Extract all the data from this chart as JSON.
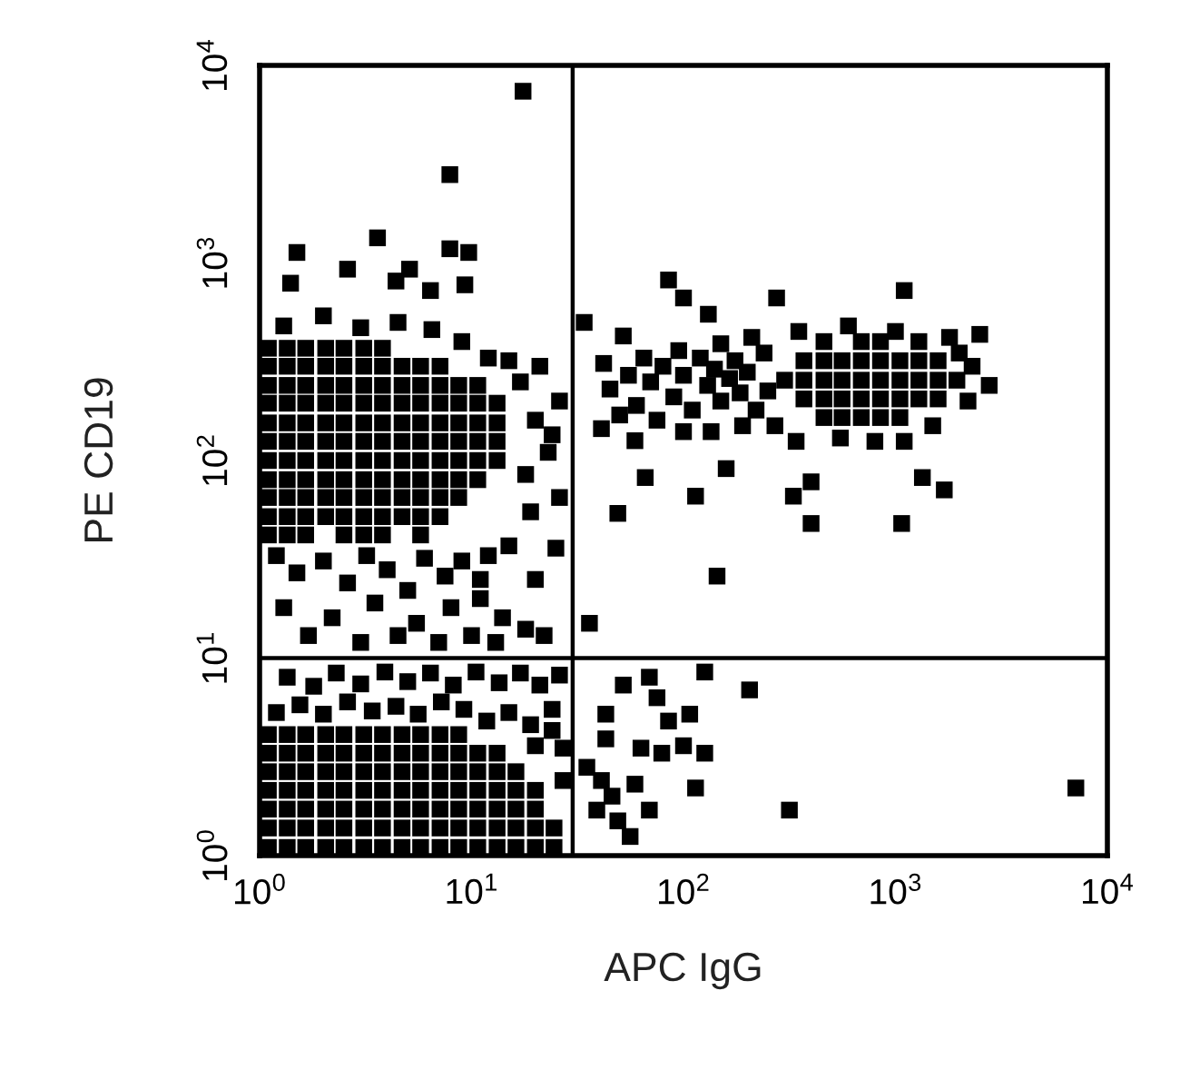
{
  "chart_data": {
    "type": "scatter",
    "xlabel": "APC IgG",
    "ylabel": "PE CD19",
    "log": "xy",
    "marker": "square",
    "grid": false,
    "xlim": [
      1,
      10000
    ],
    "ylim": [
      1,
      10000
    ],
    "xticks": [
      {
        "value": 1,
        "label": "10$^{0}$"
      },
      {
        "value": 10,
        "label": "10$^{1}$"
      },
      {
        "value": 100,
        "label": "10$^{2}$"
      },
      {
        "value": 1000,
        "label": "10$^{3}$"
      },
      {
        "value": 10000,
        "label": "10$^{4}$"
      }
    ],
    "yticks": [
      {
        "value": 1,
        "label": "10$^{0}$"
      },
      {
        "value": 10,
        "label": "10$^{1}$"
      },
      {
        "value": 100,
        "label": "10$^{2}$"
      },
      {
        "value": 1000,
        "label": "10$^{3}$"
      },
      {
        "value": 10000,
        "label": "10$^{4}$"
      }
    ],
    "ref_lines": [
      {
        "axis": "x",
        "value": 30,
        "color": "#000000"
      },
      {
        "axis": "y",
        "value": 10,
        "color": "#000000"
      }
    ],
    "series": [
      {
        "color": "#000000",
        "x": [
          1.1,
          1.35,
          1.65,
          2.05,
          2.5,
          3.1,
          3.8,
          1.1,
          1.35,
          1.65,
          2.05,
          2.5,
          3.1,
          3.8,
          4.7,
          5.75,
          7.1,
          1.1,
          1.35,
          1.65,
          2.05,
          2.5,
          3.1,
          3.8,
          4.7,
          5.75,
          7.1,
          8.7,
          10.7,
          1.1,
          1.35,
          1.65,
          2.05,
          2.5,
          3.1,
          3.8,
          4.7,
          5.75,
          7.1,
          8.7,
          10.7,
          13.2,
          1.1,
          1.35,
          1.65,
          2.05,
          2.5,
          3.1,
          3.8,
          4.7,
          5.75,
          7.1,
          8.7,
          10.7,
          13.2,
          1.1,
          1.35,
          1.65,
          2.05,
          2.5,
          3.1,
          3.8,
          4.7,
          5.75,
          7.1,
          8.7,
          10.7,
          13.2,
          1.1,
          1.35,
          1.65,
          2.05,
          2.5,
          3.1,
          3.8,
          4.7,
          5.75,
          7.1,
          8.7,
          10.7,
          13.2,
          1.1,
          1.35,
          1.65,
          2.05,
          2.5,
          3.1,
          3.8,
          4.7,
          5.75,
          7.1,
          8.7,
          10.7,
          1.1,
          1.35,
          1.65,
          2.05,
          2.5,
          3.1,
          3.8,
          4.7,
          5.75,
          7.1,
          8.7,
          1.1,
          1.35,
          1.65,
          2.05,
          2.5,
          3.1,
          3.8,
          4.7,
          5.75,
          7.1,
          1.1,
          1.35,
          1.65,
          2.5,
          3.1,
          3.8,
          5.75
        ],
        "values": [
          370,
          370,
          370,
          370,
          370,
          370,
          370,
          300,
          300,
          300,
          300,
          300,
          300,
          300,
          300,
          300,
          300,
          240,
          240,
          240,
          240,
          240,
          240,
          240,
          240,
          240,
          240,
          240,
          240,
          195,
          195,
          195,
          195,
          195,
          195,
          195,
          195,
          195,
          195,
          195,
          195,
          195,
          155,
          155,
          155,
          155,
          155,
          155,
          155,
          155,
          155,
          155,
          155,
          155,
          155,
          125,
          125,
          125,
          125,
          125,
          125,
          125,
          125,
          125,
          125,
          125,
          125,
          125,
          100,
          100,
          100,
          100,
          100,
          100,
          100,
          100,
          100,
          100,
          100,
          100,
          100,
          80,
          80,
          80,
          80,
          80,
          80,
          80,
          80,
          80,
          80,
          80,
          80,
          65,
          65,
          65,
          65,
          65,
          65,
          65,
          65,
          65,
          65,
          65,
          52,
          52,
          52,
          52,
          52,
          52,
          52,
          52,
          52,
          52,
          42,
          42,
          42,
          42,
          42,
          42,
          42
        ]
      },
      {
        "color": "#000000",
        "x": [
          17.5,
          7.9,
          3.6,
          1.5,
          2.6,
          1.4,
          5.1,
          4.4,
          7.9,
          9.7,
          9.3,
          6.4,
          1.3,
          2.0,
          3.0,
          4.5,
          6.5,
          9,
          12,
          15,
          17,
          20,
          23,
          18,
          26,
          26,
          19,
          24,
          21,
          25,
          1.2,
          1.5,
          2.0,
          2.6,
          3.2,
          4,
          5,
          6,
          7.5,
          9,
          11,
          12,
          15,
          1.3,
          2.2,
          3.5,
          5.5,
          8,
          11,
          14,
          1.7,
          3,
          4.5,
          7,
          10,
          13,
          18,
          20,
          22
        ],
        "values": [
          7400,
          2800,
          1340,
          1130,
          930,
          790,
          930,
          810,
          1180,
          1130,
          775,
          725,
          480,
          540,
          470,
          500,
          460,
          400,
          330,
          320,
          250,
          160,
          110,
          85,
          200,
          65,
          55,
          135,
          300,
          36,
          33,
          27,
          31,
          24,
          33,
          28,
          22,
          32,
          26,
          31,
          25,
          33,
          37,
          18,
          16,
          19,
          15,
          18,
          20,
          16,
          13,
          12,
          13,
          12,
          13,
          12,
          14,
          25,
          13
        ]
      },
      {
        "color": "#000000",
        "x": [
          1.1,
          1.35,
          1.65,
          2.05,
          2.5,
          3.1,
          3.8,
          4.7,
          5.75,
          7.1,
          8.7,
          10.7,
          13.2,
          16.2,
          20,
          24.5,
          1.1,
          1.35,
          1.65,
          2.05,
          2.5,
          3.1,
          3.8,
          4.7,
          5.75,
          7.1,
          8.7,
          10.7,
          13.2,
          16.2,
          20,
          24.5,
          1.1,
          1.35,
          1.65,
          2.05,
          2.5,
          3.1,
          3.8,
          4.7,
          5.75,
          7.1,
          8.7,
          10.7,
          13.2,
          16.2,
          20,
          1.1,
          1.35,
          1.65,
          2.05,
          2.5,
          3.1,
          3.8,
          4.7,
          5.75,
          7.1,
          8.7,
          10.7,
          13.2,
          16.2,
          20,
          1.1,
          1.35,
          1.65,
          2.05,
          2.5,
          3.1,
          3.8,
          4.7,
          5.75,
          7.1,
          8.7,
          10.7,
          13.2,
          16.2,
          1.1,
          1.35,
          1.65,
          2.05,
          2.5,
          3.1,
          3.8,
          4.7,
          5.75,
          7.1,
          8.7,
          10.7,
          13.2,
          1.1,
          1.35,
          1.65,
          2.05,
          2.5,
          3.1,
          3.8,
          4.7,
          5.75,
          7.1,
          8.7
        ],
        "values": [
          1.1,
          1.1,
          1.1,
          1.1,
          1.1,
          1.1,
          1.1,
          1.1,
          1.1,
          1.1,
          1.1,
          1.1,
          1.1,
          1.1,
          1.1,
          1.1,
          1.38,
          1.38,
          1.38,
          1.38,
          1.38,
          1.38,
          1.38,
          1.38,
          1.38,
          1.38,
          1.38,
          1.38,
          1.38,
          1.38,
          1.38,
          1.38,
          1.72,
          1.72,
          1.72,
          1.72,
          1.72,
          1.72,
          1.72,
          1.72,
          1.72,
          1.72,
          1.72,
          1.72,
          1.72,
          1.72,
          1.72,
          2.14,
          2.14,
          2.14,
          2.14,
          2.14,
          2.14,
          2.14,
          2.14,
          2.14,
          2.14,
          2.14,
          2.14,
          2.14,
          2.14,
          2.14,
          2.66,
          2.66,
          2.66,
          2.66,
          2.66,
          2.66,
          2.66,
          2.66,
          2.66,
          2.66,
          2.66,
          2.66,
          2.66,
          2.66,
          3.3,
          3.3,
          3.3,
          3.3,
          3.3,
          3.3,
          3.3,
          3.3,
          3.3,
          3.3,
          3.3,
          3.3,
          3.3,
          4.1,
          4.1,
          4.1,
          4.1,
          4.1,
          4.1,
          4.1,
          4.1,
          4.1,
          4.1,
          4.1
        ]
      },
      {
        "color": "#000000",
        "x": [
          1.2,
          1.55,
          2.0,
          2.6,
          3.4,
          4.4,
          5.6,
          7.2,
          9.2,
          11.8,
          15,
          19,
          24,
          1.35,
          1.8,
          2.3,
          3.0,
          3.9,
          5.0,
          6.4,
          8.2,
          10.5,
          13.5,
          17,
          21,
          26,
          24,
          20,
          27,
          27
        ],
        "values": [
          5.3,
          5.8,
          5.2,
          6.0,
          5.4,
          5.7,
          5.2,
          6.0,
          5.5,
          4.8,
          5.3,
          4.6,
          5.5,
          8.0,
          7.2,
          8.4,
          7.4,
          8.5,
          7.6,
          8.4,
          7.3,
          8.5,
          7.5,
          8.4,
          7.3,
          8.2,
          4.3,
          3.6,
          3.5,
          2.4
        ]
      },
      {
        "color": "#000000",
        "x": [
          460,
          690,
          850,
          1290,
          370,
          460,
          560,
          690,
          850,
          1050,
          1290,
          1590,
          300,
          370,
          460,
          560,
          690,
          850,
          1050,
          1290,
          1590,
          1950,
          370,
          460,
          560,
          690,
          850,
          1050,
          1290,
          1590,
          460,
          560,
          690,
          850,
          1050,
          45,
          55,
          60,
          70,
          80,
          90,
          100,
          110,
          120,
          130,
          140,
          150,
          165,
          175,
          185,
          200,
          220,
          240,
          250,
          42,
          65,
          95,
          150,
          210,
          50,
          75,
          100,
          135,
          190,
          270,
          340,
          550,
          800,
          1100,
          1500,
          2200,
          2300,
          2000,
          1800,
          600,
          350,
          1000
        ],
        "values": [
          400,
          400,
          400,
          400,
          320,
          320,
          320,
          320,
          320,
          320,
          320,
          320,
          255,
          255,
          255,
          255,
          255,
          255,
          255,
          255,
          255,
          255,
          205,
          205,
          205,
          205,
          205,
          205,
          205,
          205,
          165,
          165,
          165,
          165,
          165,
          230,
          270,
          190,
          250,
          300,
          210,
          270,
          180,
          330,
          240,
          290,
          200,
          260,
          320,
          220,
          280,
          180,
          350,
          225,
          310,
          330,
          360,
          390,
          420,
          170,
          160,
          140,
          140,
          150,
          150,
          125,
          130,
          125,
          125,
          150,
          200,
          300,
          350,
          420,
          480,
          450,
          450
        ]
      },
      {
        "color": "#000000",
        "x": [
          85,
          100,
          275,
          1100,
          2500,
          2770,
          1340,
          1700,
          400,
          159,
          114,
          59,
          41,
          66,
          34,
          52,
          131,
          49,
          144,
          36,
          400,
          1070,
          330,
          35,
          41,
          43,
          52,
          69,
          63,
          85,
          100,
          126,
          205,
          114,
          69,
          316,
          7100,
          59,
          56,
          79,
          126,
          43,
          49,
          39,
          46,
          107,
          75
        ],
        "values": [
          820,
          665,
          665,
          725,
          435,
          240,
          82,
          71,
          78,
          91,
          66,
          126,
          145,
          82,
          500,
          427,
          550,
          54,
          26,
          15,
          48,
          48,
          66,
          2.8,
          2.4,
          5.2,
          7.3,
          8,
          3.5,
          4.8,
          3.6,
          8.5,
          6.9,
          2.2,
          1.7,
          1.7,
          2.2,
          2.3,
          1.25,
          3.3,
          3.3,
          3.9,
          1.5,
          1.7,
          2.0,
          5.2,
          6.3
        ]
      }
    ]
  }
}
